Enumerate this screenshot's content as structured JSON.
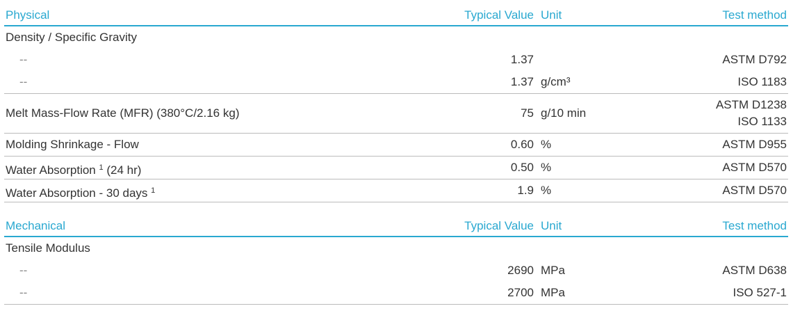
{
  "sections": [
    {
      "title": "Physical",
      "columns": [
        "Typical Value",
        "Unit",
        "Test method"
      ],
      "groups": [
        {
          "name": "Density / Specific Gravity",
          "subrows": [
            {
              "name": "--",
              "value": "1.37",
              "methods": [
                "ASTM D792"
              ]
            },
            {
              "name": "--",
              "value": "1.37",
              "unit": "g/cm³",
              "methods": [
                "ISO 1183"
              ]
            }
          ]
        },
        {
          "name": "Melt Mass-Flow Rate (MFR) (380°C/2.16 kg)",
          "value": "75",
          "unit": "g/10 min",
          "methods": [
            "ASTM D1238",
            "ISO 1133"
          ]
        },
        {
          "name": "Molding Shrinkage - Flow",
          "value": "0.60",
          "unit": "%",
          "methods": [
            "ASTM D955"
          ]
        },
        {
          "name": "Water Absorption",
          "footnote": "1",
          "name_suffix": "(24 hr)",
          "value": "0.50",
          "unit": "%",
          "methods": [
            "ASTM D570"
          ]
        },
        {
          "name": "Water Absorption - 30 days",
          "footnote": "1",
          "value": "1.9",
          "unit": "%",
          "methods": [
            "ASTM D570"
          ]
        }
      ]
    },
    {
      "title": "Mechanical",
      "columns": [
        "Typical Value",
        "Unit",
        "Test method"
      ],
      "groups": [
        {
          "name": "Tensile Modulus",
          "subrows": [
            {
              "name": "--",
              "value": "2690",
              "unit": "MPa",
              "methods": [
                "ASTM D638"
              ]
            },
            {
              "name": "--",
              "value": "2700",
              "unit": "MPa",
              "methods": [
                "ISO 527-1"
              ]
            }
          ]
        }
      ]
    }
  ]
}
